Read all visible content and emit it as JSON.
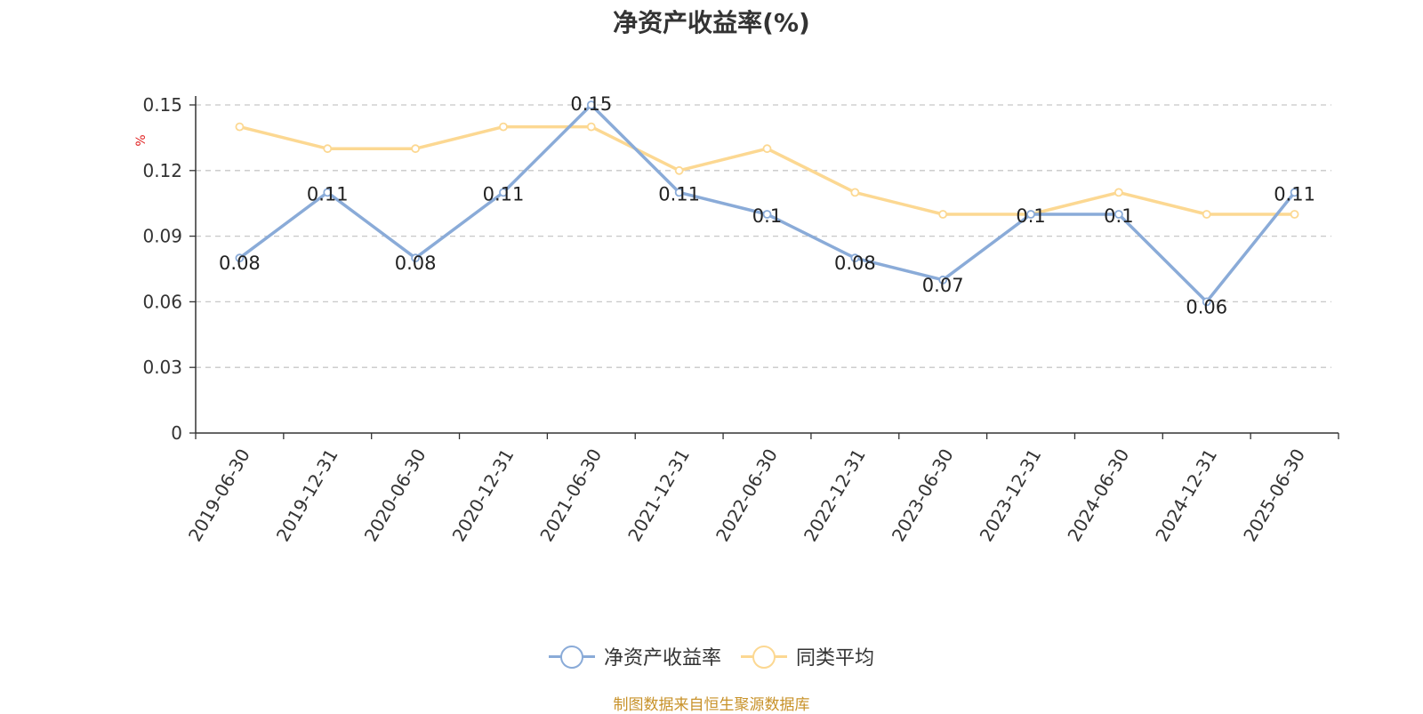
{
  "title": "净资产收益率(%)",
  "source": "制图数据来自恒生聚源数据库",
  "colors": {
    "series1": "#8aabd8",
    "series2": "#fcd892",
    "source_text": "#c8922a"
  },
  "legend": [
    {
      "label": "净资产收益率",
      "color": "#8aabd8"
    },
    {
      "label": "同类平均",
      "color": "#fcd892"
    }
  ],
  "chart_data": {
    "type": "line",
    "title": "净资产收益率(%)",
    "ylabel": "%",
    "xlabel": "",
    "ylim": [
      0,
      0.15
    ],
    "yticks": [
      "0",
      "0.03",
      "0.06",
      "0.09",
      "0.12",
      "0.15"
    ],
    "grid": true,
    "legend_position": "bottom",
    "categories": [
      "2019-06-30",
      "2019-12-31",
      "2020-06-30",
      "2020-12-31",
      "2021-06-30",
      "2021-12-31",
      "2022-06-30",
      "2022-12-31",
      "2023-06-30",
      "2023-12-31",
      "2024-06-30",
      "2024-12-31",
      "2025-06-30"
    ],
    "series": [
      {
        "name": "净资产收益率",
        "values": [
          0.08,
          0.11,
          0.08,
          0.11,
          0.15,
          0.11,
          0.1,
          0.08,
          0.07,
          0.1,
          0.1,
          0.06,
          0.11
        ],
        "labels": [
          "0.08",
          "0.11",
          "0.08",
          "0.11",
          "0.15",
          "0.11",
          "0.1",
          "0.08",
          "0.07",
          "0.1",
          "0.1",
          "0.06",
          "0.11"
        ]
      },
      {
        "name": "同类平均",
        "values": [
          0.14,
          0.13,
          0.13,
          0.14,
          0.14,
          0.12,
          0.13,
          0.11,
          0.1,
          0.1,
          0.11,
          0.1,
          0.1
        ]
      }
    ]
  }
}
